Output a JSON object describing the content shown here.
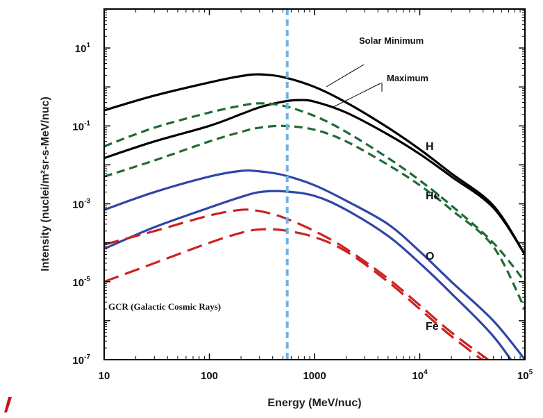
{
  "chart_data": {
    "type": "line",
    "xlabel": "Energy (MeV/nuc)",
    "ylabel": "Intensity (nuclei/m²sr-s-MeV/nuc)",
    "xscale": "log",
    "yscale": "log",
    "xlim": [
      10,
      100000
    ],
    "ylim": [
      1e-07,
      100
    ],
    "x_ticks": [
      {
        "value": 10,
        "label": "10"
      },
      {
        "value": 100,
        "label": "100"
      },
      {
        "value": 1000,
        "label": "1000"
      },
      {
        "value": 10000,
        "label": "10",
        "sup": "4"
      },
      {
        "value": 100000,
        "label": "10",
        "sup": "5"
      }
    ],
    "y_ticks": [
      {
        "value": 10,
        "label": "10",
        "sup": "1"
      },
      {
        "value": 0.1,
        "label": "10",
        "sup": "-1"
      },
      {
        "value": 0.001,
        "label": "10",
        "sup": "-3"
      },
      {
        "value": 1e-05,
        "label": "10",
        "sup": "-5"
      },
      {
        "value": 1e-07,
        "label": "10",
        "sup": "-7"
      }
    ],
    "grid": false,
    "legend": "none",
    "annotations": {
      "solar_minimum": "Solar Minimum",
      "maximum": "Maximum",
      "gcr": "GCR (Galactic Cosmic Rays)"
    },
    "vertical_marker": {
      "x": 550,
      "color": "#6fb3e6",
      "style": "dotted"
    },
    "series": [
      {
        "name": "H",
        "condition": "min",
        "color": "#000000",
        "style": "solid",
        "x": [
          10,
          30,
          100,
          200,
          300,
          500,
          1000,
          2000,
          5000,
          10000,
          20000,
          50000,
          100000
        ],
        "y": [
          0.25,
          0.6,
          1.3,
          1.9,
          2.1,
          1.8,
          1.0,
          0.4,
          0.09,
          0.025,
          0.006,
          0.0009,
          5e-05
        ]
      },
      {
        "name": "H",
        "condition": "max",
        "color": "#000000",
        "style": "solid",
        "x": [
          10,
          30,
          100,
          200,
          300,
          500,
          700,
          1000,
          2000,
          5000,
          10000,
          20000,
          50000,
          100000
        ],
        "y": [
          0.015,
          0.04,
          0.1,
          0.2,
          0.3,
          0.42,
          0.46,
          0.42,
          0.22,
          0.06,
          0.019,
          0.005,
          0.0008,
          5e-05
        ]
      },
      {
        "name": "He",
        "condition": "min",
        "color": "#1f6b33",
        "style": "dashed",
        "x": [
          10,
          30,
          100,
          200,
          300,
          500,
          1000,
          2000,
          5000,
          10000,
          20000,
          50000,
          100000
        ],
        "y": [
          0.03,
          0.09,
          0.22,
          0.33,
          0.38,
          0.33,
          0.18,
          0.07,
          0.015,
          0.004,
          0.0009,
          0.0001,
          1e-05
        ]
      },
      {
        "name": "He",
        "condition": "max",
        "color": "#1f6b33",
        "style": "dashed",
        "x": [
          10,
          30,
          100,
          200,
          300,
          500,
          1000,
          2000,
          5000,
          10000,
          20000,
          50000,
          100000
        ],
        "y": [
          0.005,
          0.013,
          0.04,
          0.07,
          0.09,
          0.1,
          0.08,
          0.04,
          0.01,
          0.003,
          0.0007,
          8e-05,
          2e-06
        ]
      },
      {
        "name": "O",
        "condition": "min",
        "color": "#2f46a8",
        "style": "solid",
        "x": [
          10,
          30,
          100,
          200,
          300,
          500,
          1000,
          2000,
          5000,
          10000,
          20000,
          50000,
          100000
        ],
        "y": [
          0.0007,
          0.002,
          0.005,
          0.007,
          0.0068,
          0.0055,
          0.003,
          0.0012,
          0.0003,
          6e-05,
          1e-05,
          1e-06,
          1e-07
        ]
      },
      {
        "name": "O",
        "condition": "max",
        "color": "#2f46a8",
        "style": "solid",
        "x": [
          10,
          30,
          100,
          200,
          300,
          500,
          1000,
          2000,
          5000,
          10000,
          20000,
          50000,
          100000
        ],
        "y": [
          7e-05,
          0.00025,
          0.0008,
          0.0015,
          0.002,
          0.0021,
          0.0016,
          0.0007,
          0.00015,
          3e-05,
          5e-06,
          4e-07,
          3e-08
        ]
      },
      {
        "name": "Fe",
        "condition": "min",
        "color": "#cc2222",
        "style": "dashed",
        "x": [
          10,
          30,
          100,
          200,
          300,
          500,
          1000,
          2000,
          5000,
          10000,
          20000,
          50000
        ],
        "y": [
          9e-05,
          0.0002,
          0.0005,
          0.0007,
          0.00065,
          0.00045,
          0.0002,
          7e-05,
          1.2e-05,
          2.5e-06,
          5e-07,
          8e-08
        ]
      },
      {
        "name": "Fe",
        "condition": "max",
        "color": "#cc2222",
        "style": "dashed",
        "x": [
          10,
          30,
          100,
          200,
          300,
          500,
          1000,
          2000,
          5000,
          10000,
          20000,
          50000
        ],
        "y": [
          1e-05,
          3e-05,
          0.0001,
          0.00018,
          0.00022,
          0.00021,
          0.00014,
          6e-05,
          1e-05,
          2e-06,
          4e-07,
          6e-08
        ]
      }
    ]
  }
}
